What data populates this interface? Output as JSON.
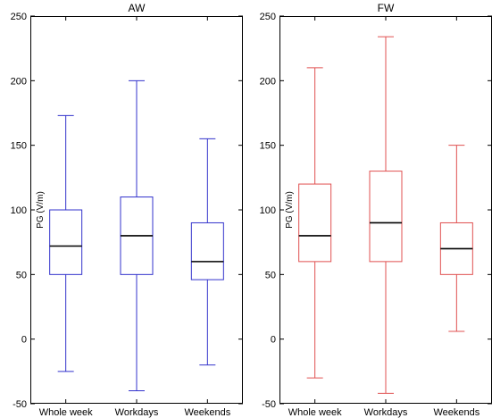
{
  "chart_data": [
    {
      "type": "box",
      "title": "AW",
      "ylabel": "PG (V/m)",
      "ylim": [
        -50,
        250
      ],
      "yticks": [
        -50,
        0,
        50,
        100,
        150,
        200,
        250
      ],
      "categories": [
        "Whole week",
        "Workdays",
        "Weekends"
      ],
      "color": "#3333cc",
      "boxes": [
        {
          "category": "Whole week",
          "min": -25,
          "q1": 50,
          "median": 72,
          "q3": 100,
          "max": 173
        },
        {
          "category": "Workdays",
          "min": -40,
          "q1": 50,
          "median": 80,
          "q3": 110,
          "max": 200
        },
        {
          "category": "Weekends",
          "min": -20,
          "q1": 46,
          "median": 60,
          "q3": 90,
          "max": 155
        }
      ]
    },
    {
      "type": "box",
      "title": "FW",
      "ylabel": "PG (V/m)",
      "ylim": [
        -50,
        250
      ],
      "yticks": [
        -50,
        0,
        50,
        100,
        150,
        200,
        250
      ],
      "categories": [
        "Whole week",
        "Workdays",
        "Weekends"
      ],
      "color": "#e05050",
      "boxes": [
        {
          "category": "Whole week",
          "min": -30,
          "q1": 60,
          "median": 80,
          "q3": 120,
          "max": 210
        },
        {
          "category": "Workdays",
          "min": -42,
          "q1": 60,
          "median": 90,
          "q3": 130,
          "max": 234
        },
        {
          "category": "Weekends",
          "min": 6,
          "q1": 50,
          "median": 70,
          "q3": 90,
          "max": 150
        }
      ]
    }
  ]
}
